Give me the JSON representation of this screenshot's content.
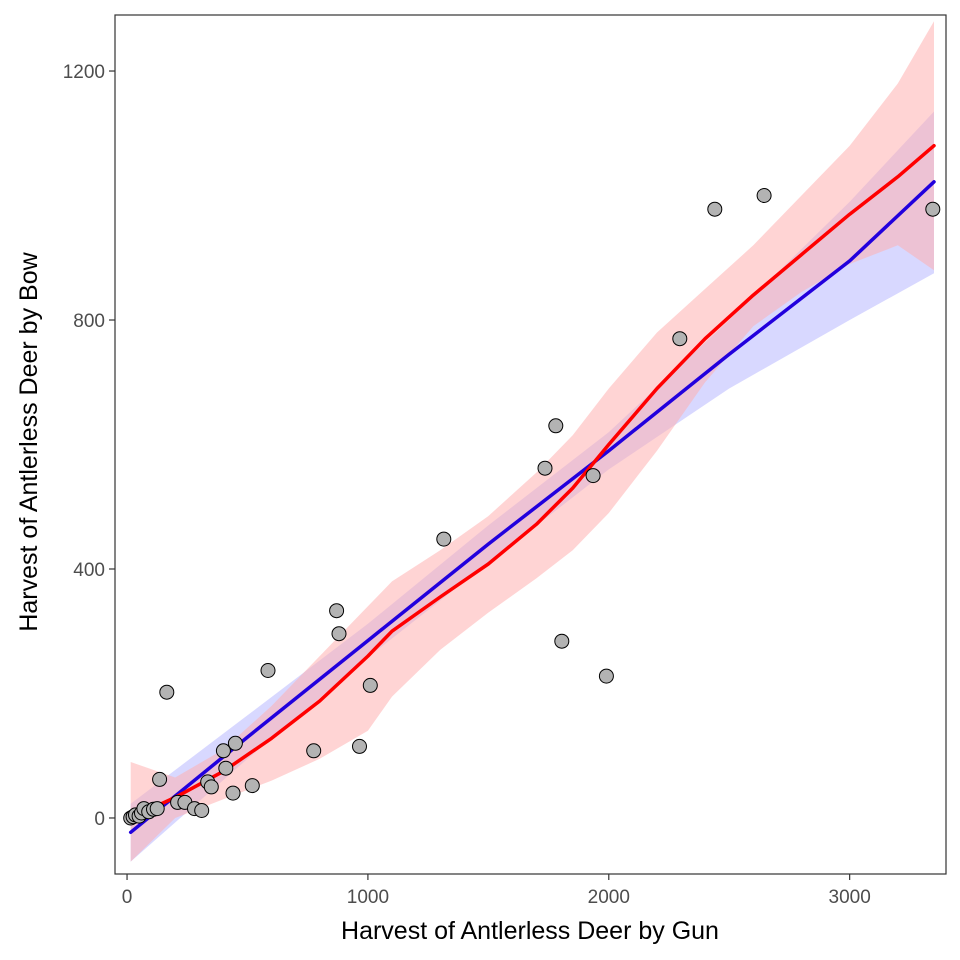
{
  "chart_data": {
    "type": "scatter",
    "title": "",
    "xlabel": "Harvest of Antlerless Deer by Gun",
    "ylabel": "Harvest of Antlerless Deer by Bow",
    "xlim": [
      -50,
      3400
    ],
    "ylim": [
      -90,
      1290
    ],
    "x_ticks": [
      0,
      1000,
      2000,
      3000
    ],
    "x_tick_labels": [
      "0",
      "1000",
      "2000",
      "3000"
    ],
    "y_ticks": [
      0,
      400,
      800,
      1200
    ],
    "y_tick_labels": [
      "0",
      "400",
      "800",
      "1200"
    ],
    "grid": false,
    "legend": "none",
    "colors": {
      "points_fill": "#b3b3b3",
      "points_stroke": "#000000",
      "linear_line": "#2200dd",
      "linear_band": "#b8b8ff",
      "loess_line": "#ff0000",
      "loess_band": "#ffb0b0",
      "panel_border": "#333333"
    },
    "points": [
      {
        "x": 15,
        "y": 0
      },
      {
        "x": 25,
        "y": 2
      },
      {
        "x": 35,
        "y": 5
      },
      {
        "x": 50,
        "y": 3
      },
      {
        "x": 60,
        "y": 8
      },
      {
        "x": 70,
        "y": 15
      },
      {
        "x": 90,
        "y": 10
      },
      {
        "x": 110,
        "y": 14
      },
      {
        "x": 125,
        "y": 15
      },
      {
        "x": 135,
        "y": 62
      },
      {
        "x": 165,
        "y": 202
      },
      {
        "x": 210,
        "y": 25
      },
      {
        "x": 240,
        "y": 25
      },
      {
        "x": 280,
        "y": 15
      },
      {
        "x": 310,
        "y": 12
      },
      {
        "x": 335,
        "y": 58
      },
      {
        "x": 350,
        "y": 50
      },
      {
        "x": 400,
        "y": 108
      },
      {
        "x": 410,
        "y": 80
      },
      {
        "x": 440,
        "y": 40
      },
      {
        "x": 450,
        "y": 120
      },
      {
        "x": 520,
        "y": 52
      },
      {
        "x": 585,
        "y": 237
      },
      {
        "x": 775,
        "y": 108
      },
      {
        "x": 870,
        "y": 333
      },
      {
        "x": 880,
        "y": 296
      },
      {
        "x": 965,
        "y": 115
      },
      {
        "x": 1010,
        "y": 213
      },
      {
        "x": 1315,
        "y": 448
      },
      {
        "x": 1735,
        "y": 562
      },
      {
        "x": 1780,
        "y": 630
      },
      {
        "x": 1805,
        "y": 284
      },
      {
        "x": 1935,
        "y": 550
      },
      {
        "x": 1990,
        "y": 228
      },
      {
        "x": 2295,
        "y": 770
      },
      {
        "x": 2440,
        "y": 978
      },
      {
        "x": 2645,
        "y": 1000
      },
      {
        "x": 3345,
        "y": 978
      }
    ],
    "series": [
      {
        "fit": "linear",
        "x": [
          15,
          500,
          1000,
          1500,
          2000,
          2500,
          3000,
          3350
        ],
        "y": [
          -23,
          130,
          285,
          440,
          590,
          745,
          895,
          1022
        ],
        "lower": [
          -70,
          95,
          258,
          410,
          560,
          690,
          800,
          875
        ],
        "upper": [
          23,
          165,
          312,
          470,
          620,
          800,
          990,
          1135
        ]
      },
      {
        "fit": "loess",
        "x": [
          15,
          200,
          400,
          600,
          800,
          1000,
          1100,
          1300,
          1500,
          1700,
          1850,
          2000,
          2200,
          2400,
          2600,
          2800,
          3000,
          3200,
          3350
        ],
        "y": [
          0,
          33,
          75,
          128,
          188,
          260,
          300,
          355,
          408,
          472,
          530,
          600,
          690,
          770,
          840,
          905,
          970,
          1030,
          1080
        ],
        "lower": [
          -70,
          0,
          30,
          60,
          95,
          140,
          195,
          270,
          330,
          385,
          430,
          490,
          590,
          700,
          790,
          845,
          890,
          920,
          880
        ],
        "upper": [
          90,
          65,
          110,
          180,
          260,
          340,
          380,
          430,
          485,
          555,
          615,
          690,
          780,
          850,
          920,
          1000,
          1080,
          1180,
          1280
        ]
      }
    ]
  }
}
